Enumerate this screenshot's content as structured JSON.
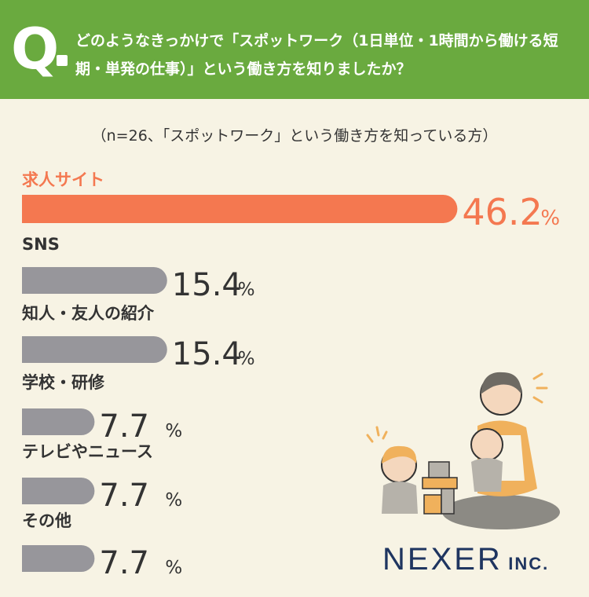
{
  "header": {
    "q_letter": "Q",
    "question": "どのようなきっかけで「スポットワーク（1日単位・1時間から働ける短期・単発の仕事）」という働き方を知りましたか？"
  },
  "subtitle": "（n=26、「スポットワーク」という働き方を知っている方）",
  "colors": {
    "header_bg": "#6aaa3f",
    "highlight": "#f47850",
    "bar_gray": "#97969b",
    "background": "#f7f3e4",
    "logo": "#1f3560"
  },
  "chart_data": {
    "type": "bar",
    "orientation": "horizontal",
    "unit": "%",
    "categories": [
      "求人サイト",
      "SNS",
      "知人・友人の紹介",
      "学校・研修",
      "テレビやニュース",
      "その他"
    ],
    "values": [
      46.2,
      15.4,
      15.4,
      7.7,
      7.7,
      7.7
    ],
    "value_labels": [
      "46.2",
      "15.4",
      "15.4",
      "7.7",
      "7.7",
      "7.7"
    ],
    "highlight_index": 0
  },
  "brand": {
    "name": "NEXER",
    "suffix": "INC."
  }
}
